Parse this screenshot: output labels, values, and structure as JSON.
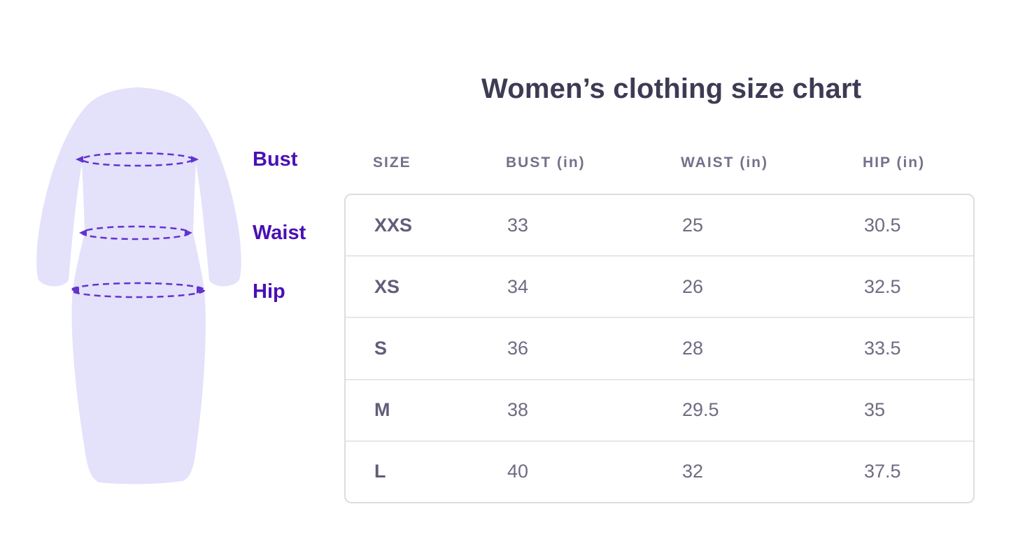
{
  "title": "Women’s clothing size chart",
  "figure": {
    "description": "dress-silhouette-with-measurement-lines",
    "labels": [
      {
        "id": "bust",
        "text": "Bust"
      },
      {
        "id": "waist",
        "text": "Waist"
      },
      {
        "id": "hip",
        "text": "Hip"
      }
    ]
  },
  "chart_data": {
    "type": "table",
    "title": "Women’s clothing size chart",
    "columns": [
      "SIZE",
      "BUST (in)",
      "WAIST (in)",
      "HIP (in)"
    ],
    "rows": [
      [
        "XXS",
        "33",
        "25",
        "30.5"
      ],
      [
        "XS",
        "34",
        "26",
        "32.5"
      ],
      [
        "S",
        "36",
        "28",
        "33.5"
      ],
      [
        "M",
        "38",
        "29.5",
        "35"
      ],
      [
        "L",
        "40",
        "32",
        "37.5"
      ]
    ],
    "units": "inches",
    "layout": {
      "grid": false,
      "header_outside_box": true
    }
  },
  "colors": {
    "title_text": "#3d3b54",
    "table_header_text": "#73718a",
    "table_cell_text": "#6e6c82",
    "table_size_text": "#605e78",
    "table_border": "#dddce2",
    "row_separator": "#e7e6eb",
    "dress_fill": "#e4e1fb",
    "measure_line": "#6333cc",
    "label_text": "#4a10b5",
    "page_bg": "#ffffff"
  }
}
